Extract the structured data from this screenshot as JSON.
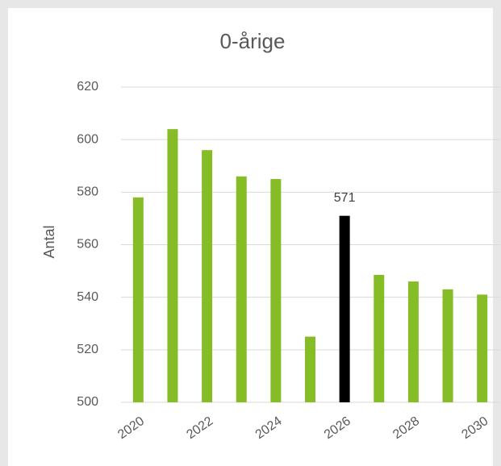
{
  "chart_data": {
    "type": "bar",
    "title": "0-årige",
    "y_axis_label": "Antal",
    "categories": [
      "2020",
      null,
      "2022",
      null,
      "2024",
      null,
      "2026",
      null,
      "2028",
      null,
      "2030"
    ],
    "values": [
      578,
      604,
      596,
      586,
      585,
      525,
      571,
      548.5,
      546,
      543,
      541
    ],
    "colors": [
      "#86bc25",
      "#86bc25",
      "#86bc25",
      "#86bc25",
      "#86bc25",
      "#86bc25",
      "#000000",
      "#86bc25",
      "#86bc25",
      "#86bc25",
      "#86bc25"
    ],
    "value_labels": [
      null,
      null,
      null,
      null,
      null,
      null,
      "571",
      null,
      null,
      null,
      null
    ],
    "ylim": [
      500,
      620
    ],
    "yticks": [
      500,
      520,
      540,
      560,
      580,
      600,
      620
    ],
    "grid": true
  }
}
